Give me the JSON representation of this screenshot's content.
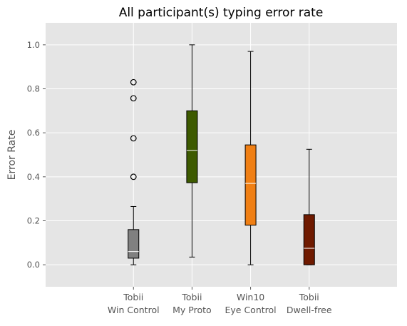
{
  "chart_data": {
    "type": "box",
    "title": "All participant(s) typing error rate",
    "ylabel": "Error Rate",
    "xlabel": "",
    "ylim": [
      -0.1,
      1.1
    ],
    "yticks": [
      "0.0",
      "0.2",
      "0.4",
      "0.6",
      "0.8",
      "1.0"
    ],
    "ytick_values": [
      0.0,
      0.2,
      0.4,
      0.6,
      0.8,
      1.0
    ],
    "grid": true,
    "background": "#e5e5e5",
    "grid_color": "#ffffff",
    "categories": [
      {
        "line1": "Tobii",
        "line2": "Win Control"
      },
      {
        "line1": "Tobii",
        "line2": "My Proto"
      },
      {
        "line1": "Win10",
        "line2": "Eye Control"
      },
      {
        "line1": "Tobii",
        "line2": "Dwell-free"
      }
    ],
    "boxes": [
      {
        "whislo": 0.0,
        "q1": 0.03,
        "median": 0.06,
        "q3": 0.16,
        "whishi": 0.265,
        "fliers": [
          0.4,
          0.575,
          0.757,
          0.83
        ],
        "color": "#808080"
      },
      {
        "whislo": 0.035,
        "q1": 0.373,
        "median": 0.52,
        "q3": 0.7,
        "whishi": 1.0,
        "fliers": [],
        "color": "#3d5a00"
      },
      {
        "whislo": 0.0,
        "q1": 0.18,
        "median": 0.37,
        "q3": 0.545,
        "whishi": 0.97,
        "fliers": [],
        "color": "#f07f14"
      },
      {
        "whislo": 0.0,
        "q1": 0.0,
        "median": 0.075,
        "q3": 0.228,
        "whishi": 0.525,
        "fliers": [],
        "color": "#6f1a00"
      }
    ]
  }
}
